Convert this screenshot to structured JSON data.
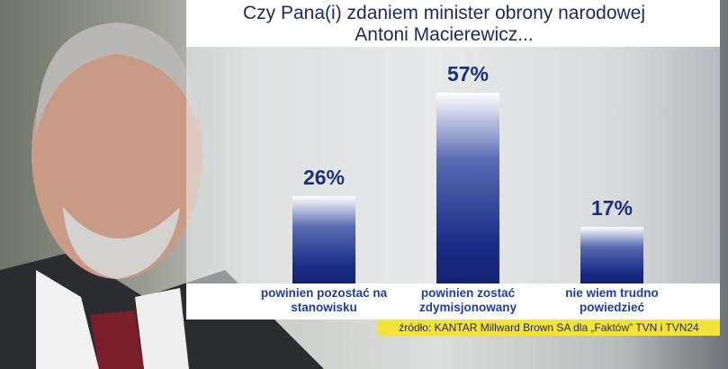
{
  "chart_data": {
    "type": "bar",
    "title": "Czy Pana(i) zdaniem minister obrony narodowej Antoni Macierewicz...",
    "categories": [
      "powinien pozostać na stanowisku",
      "powinien zostać zdymisjonowany",
      "nie wiem trudno powiedzieć"
    ],
    "values": [
      26,
      57,
      17
    ],
    "value_labels": [
      "26%",
      "57%",
      "17%"
    ],
    "color": "#1a2c86",
    "source": "źródło: KANTAR Millward Brown SA dla „Faktów” TVN i TVN24"
  }
}
